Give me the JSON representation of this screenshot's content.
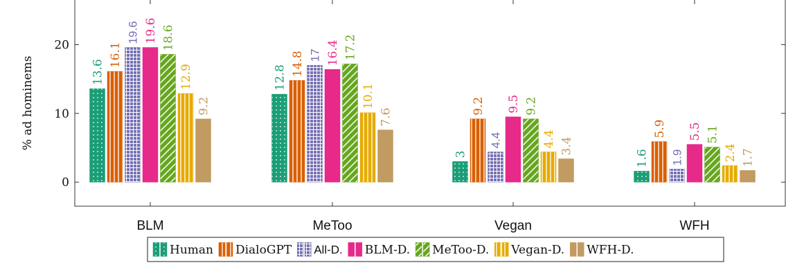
{
  "chart_data": {
    "type": "bar",
    "ylabel": "% ad hominems",
    "xlabel": "",
    "title": "",
    "ylim": [
      -3.5,
      26.5
    ],
    "yticks": [
      0,
      10,
      20
    ],
    "categories": [
      "BLM",
      "MeToo",
      "Vegan",
      "WFH"
    ],
    "series": [
      {
        "name": "Human",
        "values": [
          13.6,
          12.8,
          3,
          1.6
        ],
        "color": "#1b9e77",
        "pattern": "dots",
        "label_font": "serif"
      },
      {
        "name": "DialoGPT",
        "values": [
          16.1,
          14.8,
          9.2,
          5.9
        ],
        "color": "#d95f02",
        "pattern": "vlines",
        "label_font": "serif"
      },
      {
        "name": "All-D.",
        "values": [
          19.6,
          17,
          4.4,
          1.9
        ],
        "color": "#7570b3",
        "pattern": "grid",
        "label_font": "sans"
      },
      {
        "name": "BLM-D.",
        "values": [
          19.6,
          16.4,
          9.5,
          5.5
        ],
        "color": "#e7298a",
        "pattern": "solid",
        "label_font": "mixed"
      },
      {
        "name": "MeToo-D.",
        "values": [
          18.6,
          17.2,
          9.2,
          5.1
        ],
        "color": "#66a61e",
        "pattern": "diag",
        "label_font": "mixed"
      },
      {
        "name": "Vegan-D.",
        "values": [
          12.9,
          10.1,
          4.4,
          2.4
        ],
        "color": "#e6ab02",
        "pattern": "vlines",
        "label_font": "mixed"
      },
      {
        "name": "WFH-D.",
        "values": [
          9.2,
          7.6,
          3.4,
          1.7
        ],
        "color": "#c19b61",
        "pattern": "solid",
        "label_font": "mixed"
      }
    ],
    "legend": "bottom-center"
  }
}
